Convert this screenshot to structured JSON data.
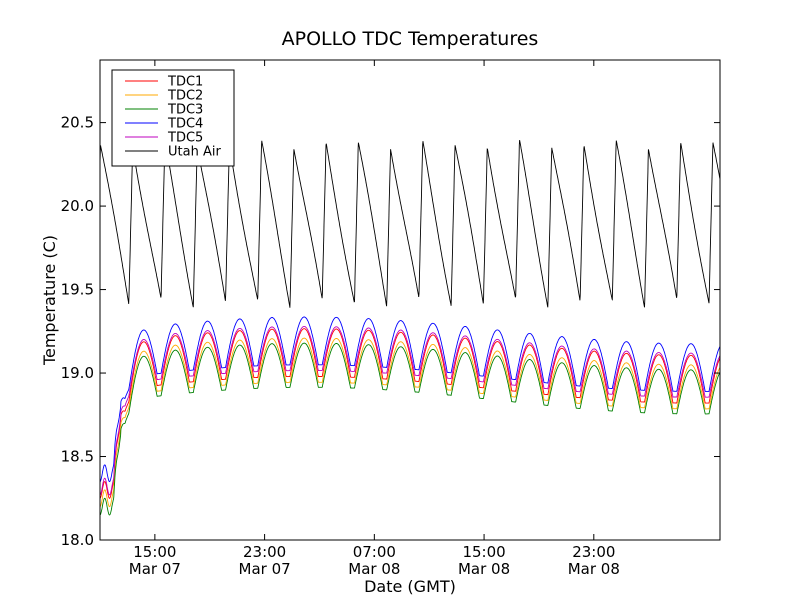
{
  "chart_data": {
    "type": "line",
    "title": "APOLLO TDC Temperatures",
    "xlabel": "Date (GMT)",
    "ylabel": "Temperature (C)",
    "x_unit": "hours since Mar 07 00:00 GMT",
    "xlim": [
      11.0,
      56.2
    ],
    "ylim": [
      18.0,
      20.875
    ],
    "yticks": [
      18.0,
      18.5,
      19.0,
      19.5,
      20.0,
      20.5
    ],
    "ytick_labels": [
      "18.0",
      "18.5",
      "19.0",
      "19.5",
      "20.0",
      "20.5"
    ],
    "xticks": [
      {
        "value": 15,
        "time": "15:00",
        "date": "Mar 07"
      },
      {
        "value": 23,
        "time": "23:00",
        "date": "Mar 07"
      },
      {
        "value": 31,
        "time": "07:00",
        "date": "Mar 08"
      },
      {
        "value": 39,
        "time": "15:00",
        "date": "Mar 08"
      },
      {
        "value": 47,
        "time": "23:00",
        "date": "Mar 08"
      }
    ],
    "grid": false,
    "legend_position": "top-left",
    "series": [
      {
        "name": "TDC1",
        "color": "#ff0000",
        "base": 18.3,
        "plateau": 19.1,
        "amp": 0.13,
        "period": 2.35
      },
      {
        "name": "TDC2",
        "color": "#ffaa00",
        "base": 18.25,
        "plateau": 19.05,
        "amp": 0.12,
        "period": 2.35
      },
      {
        "name": "TDC3",
        "color": "#008000",
        "base": 18.2,
        "plateau": 19.02,
        "amp": 0.12,
        "period": 2.35
      },
      {
        "name": "TDC4",
        "color": "#0000ff",
        "base": 18.4,
        "plateau": 19.17,
        "amp": 0.13,
        "period": 2.35
      },
      {
        "name": "TDC5",
        "color": "#bf00bf",
        "base": 18.32,
        "plateau": 19.12,
        "amp": 0.12,
        "period": 2.35
      },
      {
        "name": "Utah Air",
        "color": "#000000",
        "min": 19.42,
        "max": 20.37,
        "period": 2.35
      }
    ]
  }
}
